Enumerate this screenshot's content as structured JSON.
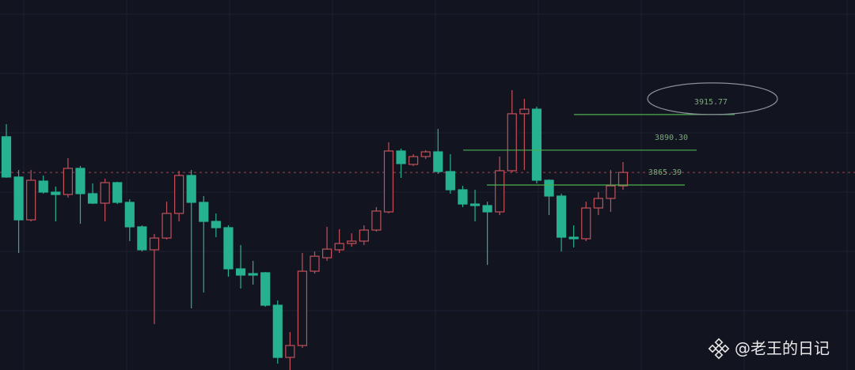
{
  "chart_data": {
    "type": "candlestick",
    "ylim": [
      3733.2,
      3997.6
    ],
    "grid": true,
    "up_color": "#c4505a",
    "down_color": "#26b291",
    "level_color": "#4caf50",
    "current_price": 3874.4,
    "current_price_color": "#c4505a",
    "open": [
      3899.9,
      3871.1,
      3840.5,
      3868.2,
      3860.3,
      3858.6,
      3877.3,
      3859.2,
      3852.4,
      3867.1,
      3853.0,
      3835.5,
      3819.1,
      3827.5,
      3845.1,
      3872.2,
      3853.0,
      3839.4,
      3834.9,
      3805.5,
      3802.1,
      3802.7,
      3779.5,
      3742.2,
      3750.7,
      3803.8,
      3813.4,
      3819.1,
      3823.6,
      3825.3,
      3833.2,
      3846.2,
      3889.7,
      3880.1,
      3885.7,
      3889.1,
      3875.0,
      3862.0,
      3851.8,
      3850.7,
      3846.2,
      3875.6,
      3916.3,
      3919.6,
      3868.8,
      3857.5,
      3828.1,
      3827.0,
      3849.0,
      3855.8,
      3864.8
    ],
    "high": [
      3908.9,
      3876.1,
      3876.1,
      3872.2,
      3864.3,
      3884.6,
      3879.0,
      3866.5,
      3869.9,
      3867.7,
      3855.2,
      3836.6,
      3830.4,
      3853.5,
      3875.6,
      3876.1,
      3857.5,
      3845.1,
      3836.6,
      3822.5,
      3811.2,
      3803.2,
      3782.9,
      3760.3,
      3816.8,
      3817.9,
      3835.5,
      3833.8,
      3830.9,
      3836.6,
      3849.6,
      3895.9,
      3891.4,
      3887.4,
      3890.3,
      3905.5,
      3887.4,
      3864.8,
      3862.0,
      3853.5,
      3885.7,
      3933.2,
      3927.0,
      3921.3,
      3869.4,
      3859.2,
      3836.6,
      3853.5,
      3860.3,
      3876.1,
      3881.8
    ],
    "low": [
      3870.5,
      3816.8,
      3839.4,
      3859.2,
      3839.4,
      3856.4,
      3837.7,
      3851.8,
      3839.4,
      3851.8,
      3825.3,
      3817.9,
      3766.0,
      3826.4,
      3839.4,
      3777.3,
      3788.6,
      3828.1,
      3799.9,
      3791.4,
      3794.2,
      3778.4,
      3737.7,
      3733.2,
      3749.0,
      3802.1,
      3811.2,
      3816.8,
      3821.3,
      3822.5,
      3832.1,
      3845.1,
      3870.5,
      3879.0,
      3884.0,
      3873.3,
      3859.2,
      3849.6,
      3839.4,
      3808.3,
      3843.9,
      3874.4,
      3876.1,
      3866.5,
      3843.9,
      3817.9,
      3820.8,
      3825.3,
      3843.9,
      3846.2,
      3862.0
    ],
    "close": [
      3871.1,
      3840.5,
      3868.8,
      3860.3,
      3858.6,
      3877.3,
      3859.2,
      3852.4,
      3867.1,
      3853.0,
      3835.5,
      3819.1,
      3827.5,
      3845.1,
      3872.2,
      3853.0,
      3839.4,
      3834.9,
      3805.5,
      3801.0,
      3801.0,
      3779.5,
      3742.2,
      3750.7,
      3803.8,
      3814.5,
      3819.6,
      3823.6,
      3825.3,
      3833.2,
      3846.8,
      3889.7,
      3880.7,
      3885.7,
      3889.1,
      3875.0,
      3862.0,
      3851.8,
      3850.7,
      3846.2,
      3875.6,
      3916.3,
      3919.6,
      3868.8,
      3857.5,
      3828.1,
      3827.0,
      3849.0,
      3855.8,
      3864.8,
      3874.4
    ],
    "levels": [
      {
        "value": 3915.77,
        "label": "3915.77"
      },
      {
        "value": 3890.3,
        "label": "3890.30"
      },
      {
        "value": 3865.39,
        "label": "3865.39"
      }
    ],
    "watermark": "@老王的日记"
  }
}
